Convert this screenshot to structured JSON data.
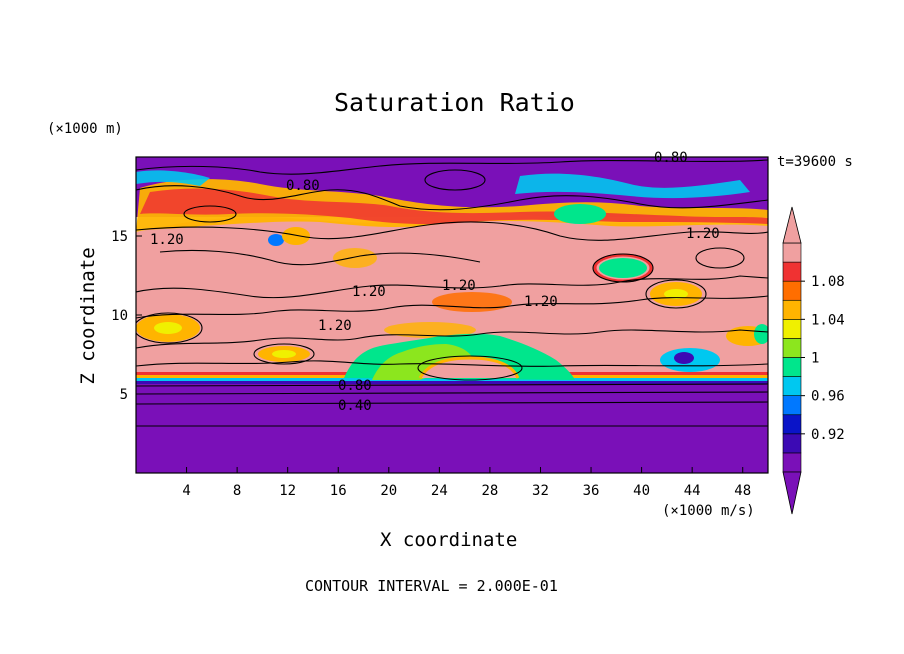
{
  "chart_data": {
    "type": "contour",
    "title": "Saturation Ratio",
    "xlabel": "X coordinate",
    "ylabel": "Z coordinate",
    "x_unit_label": "(×1000 m/s)",
    "y_unit_label": "(×1000 m)",
    "time_label": "t=39600 s",
    "footer": "CONTOUR INTERVAL = 2.000E-01",
    "xlim": [
      0,
      50
    ],
    "ylim": [
      0,
      20
    ],
    "x_ticks": [
      "4",
      "8",
      "12",
      "16",
      "20",
      "24",
      "28",
      "32",
      "36",
      "40",
      "44",
      "48"
    ],
    "y_ticks": [
      "5",
      "10",
      "15"
    ],
    "colorbar": {
      "labels": [
        "1.08",
        "1.04",
        "1",
        "0.96",
        "0.92"
      ],
      "levels": [
        0.9,
        0.92,
        0.94,
        0.96,
        0.98,
        1.0,
        1.02,
        1.04,
        1.06,
        1.08,
        1.1
      ],
      "colors": [
        "#7a10b8",
        "#3c0ab4",
        "#0a14c8",
        "#0078ff",
        "#00c8f0",
        "#00e68c",
        "#8ce61e",
        "#f0f000",
        "#ffb400",
        "#ff6e00",
        "#f03232",
        "#f0a0a0"
      ]
    },
    "contour_labels": [
      "0.80",
      "0.80",
      "1.20",
      "1.20",
      "1.20",
      "1.20",
      "1.20",
      "1.20",
      "0.80",
      "0.40"
    ]
  }
}
